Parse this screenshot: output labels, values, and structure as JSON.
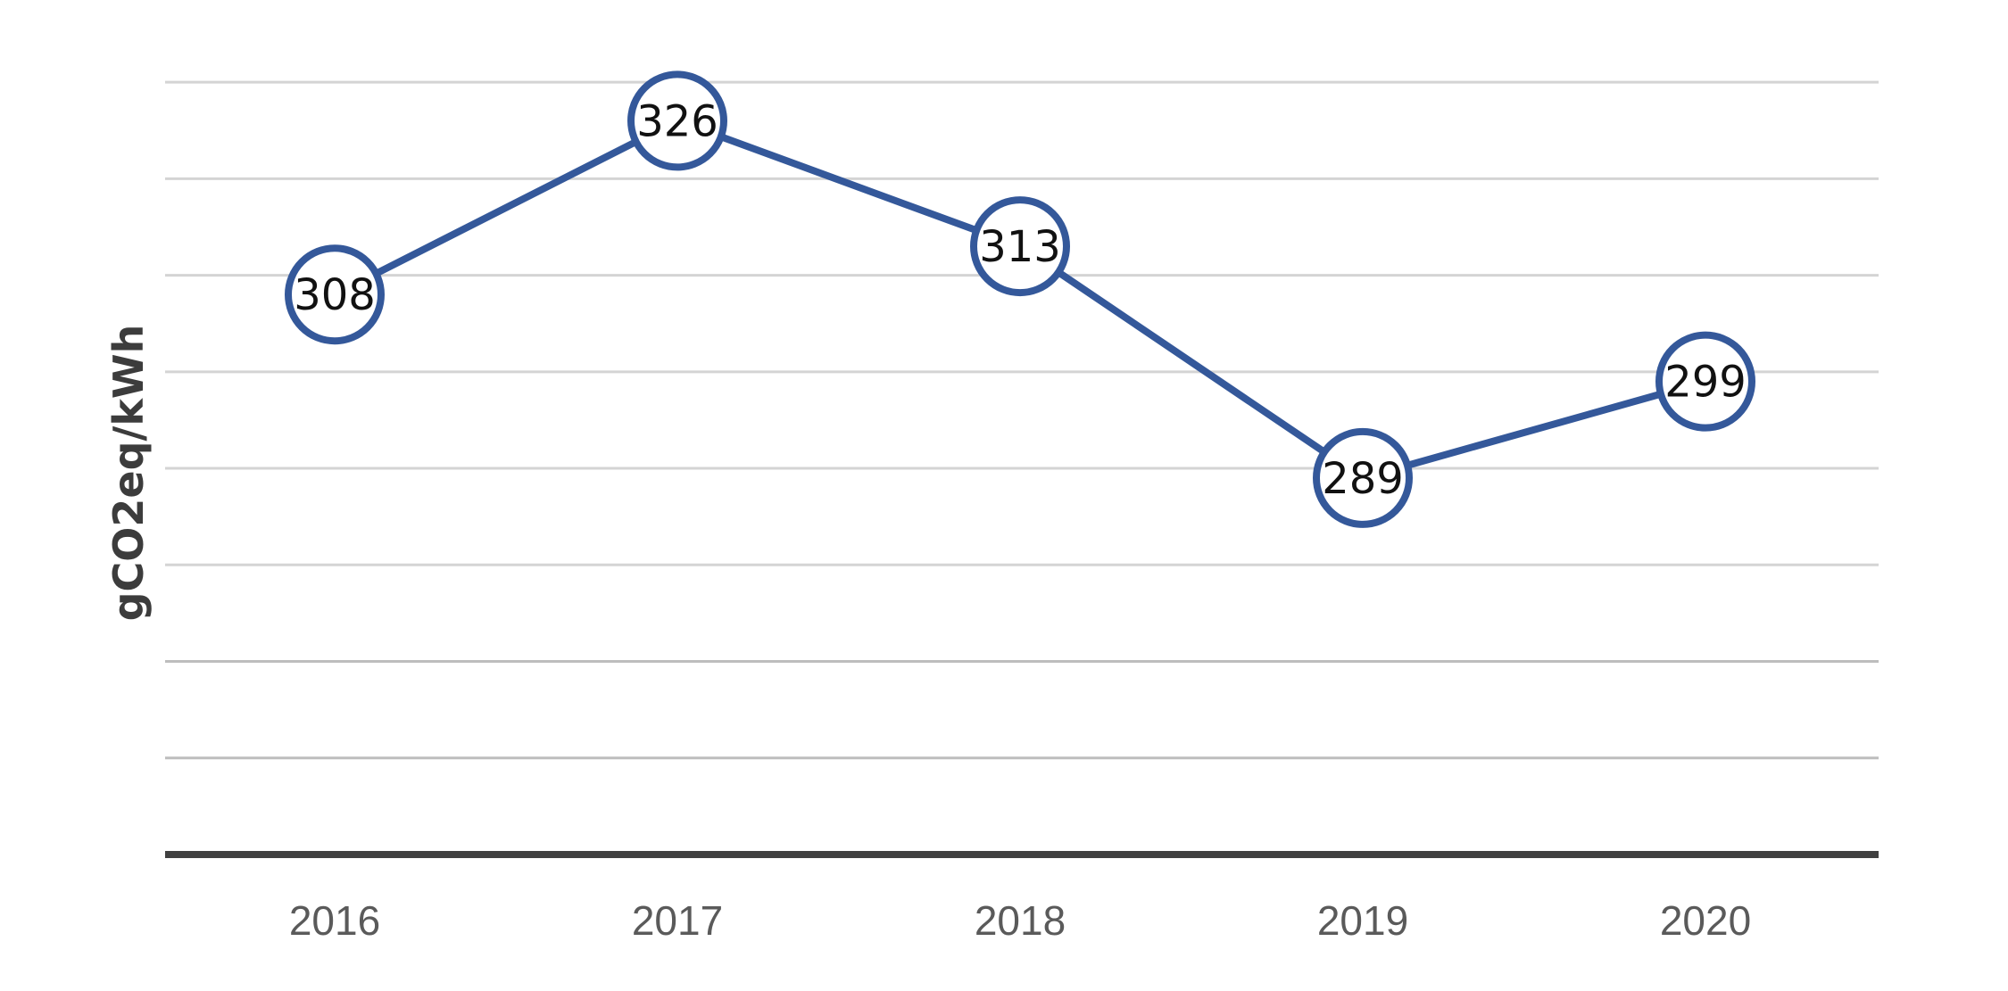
{
  "chart_data": {
    "type": "line",
    "title": "",
    "xlabel": "",
    "ylabel": "gCO2eq/kWh",
    "categories": [
      "2016",
      "2017",
      "2018",
      "2019",
      "2020"
    ],
    "series": [
      {
        "values": [
          308,
          326,
          313,
          289,
          299
        ],
        "color": "#34589a"
      }
    ],
    "ylim": [
      250,
      335
    ],
    "gridlines": [
      260,
      270,
      280,
      290,
      300,
      310,
      320,
      330
    ],
    "grid": true,
    "legend": "none",
    "colors": {
      "line": "#34589a",
      "grid": "#d4d4d4",
      "axis": "#404040",
      "tick_text": "#5a5a5a"
    }
  }
}
